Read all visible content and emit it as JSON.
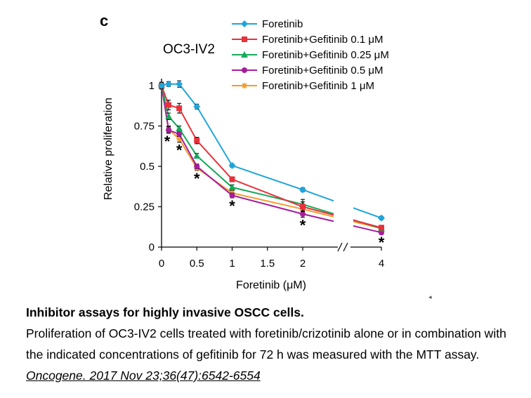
{
  "figure": {
    "panel_letter": "c",
    "cell_line": "OC3-IV2"
  },
  "chart_data": {
    "type": "line",
    "title": "",
    "xlabel": "Foretinib (μM)",
    "ylabel": "Relative proliferation",
    "x": [
      0,
      0.1,
      0.25,
      0.5,
      1,
      2,
      4
    ],
    "x_ticks": [
      "0",
      "0.5",
      "1",
      "1.5",
      "2",
      "4"
    ],
    "x_tick_values": [
      0,
      0.5,
      1,
      1.5,
      2,
      4
    ],
    "y_ticks": [
      "0",
      "0.25",
      "0.5",
      "0.75",
      "1"
    ],
    "y_tick_values": [
      0,
      0.25,
      0.5,
      0.75,
      1
    ],
    "ylim": [
      0,
      1
    ],
    "axis_break": "between 2 and 4",
    "legend_position": "top-right",
    "significance_marker": "*",
    "significance_x": [
      0.1,
      0.25,
      0.5,
      1,
      2,
      4
    ],
    "series": [
      {
        "name": "Foretinib",
        "color": "#1fa5d9",
        "marker": "diamond",
        "values": [
          1.0,
          1.01,
          1.01,
          0.87,
          0.505,
          0.355,
          0.18
        ],
        "errors": [
          0.02,
          0.015,
          0.02,
          0.015,
          0.01,
          0.012,
          0.01
        ]
      },
      {
        "name": "Foretinib+Gefitinib 0.1 μM",
        "color": "#e8313a",
        "marker": "square",
        "values": [
          1.0,
          0.88,
          0.86,
          0.66,
          0.42,
          0.25,
          0.12
        ],
        "errors": [
          0.02,
          0.03,
          0.03,
          0.02,
          0.015,
          0.03,
          0.015
        ]
      },
      {
        "name": "Foretinib+Gefitinib 0.25 μM",
        "color": "#17a85a",
        "marker": "triangle",
        "values": [
          1.0,
          0.81,
          0.735,
          0.565,
          0.37,
          0.265,
          0.115
        ],
        "errors": [
          0.02,
          0.02,
          0.015,
          0.015,
          0.015,
          0.03,
          0.015
        ]
      },
      {
        "name": "Foretinib+Gefitinib 0.5 μM",
        "color": "#a51d9b",
        "marker": "circle",
        "values": [
          1.0,
          0.725,
          0.7,
          0.5,
          0.32,
          0.205,
          0.09
        ],
        "errors": [
          0.02,
          0.02,
          0.015,
          0.015,
          0.015,
          0.02,
          0.012
        ]
      },
      {
        "name": "Foretinib+Gefitinib 1 μM",
        "color": "#f29b2a",
        "marker": "asterisk",
        "values": [
          1.0,
          0.73,
          0.67,
          0.49,
          0.335,
          0.235,
          0.115
        ],
        "errors": [
          0.02,
          0.02,
          0.02,
          0.015,
          0.015,
          0.03,
          0.015
        ]
      }
    ]
  },
  "caption": {
    "title": "Inhibitor assays for highly invasive OSCC cells.",
    "body": "Proliferation of OC3-IV2 cells treated with foretinib/crizotinib alone or in combination with the indicated concentrations of gefitinib for 72 h was measured with the MTT assay. ",
    "citation": "Oncogene. 2017 Nov 23;36(47):6542-6554"
  }
}
